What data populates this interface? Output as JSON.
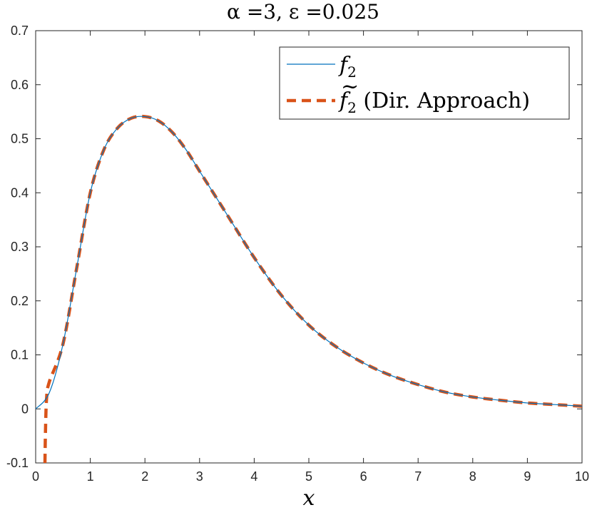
{
  "chart_data": {
    "type": "line",
    "title": "α =3, ε =0.025",
    "xlabel": "x",
    "ylabel": "",
    "xlim": [
      0,
      10
    ],
    "ylim": [
      -0.1,
      0.7
    ],
    "xticks": [
      0,
      1,
      2,
      3,
      4,
      5,
      6,
      7,
      8,
      9,
      10
    ],
    "yticks": [
      -0.1,
      0,
      0.1,
      0.2,
      0.3,
      0.4,
      0.5,
      0.6,
      0.7
    ],
    "xtick_labels": [
      "0",
      "1",
      "2",
      "3",
      "4",
      "5",
      "6",
      "7",
      "8",
      "9",
      "10"
    ],
    "ytick_labels": [
      "-0.1",
      "0",
      "0.1",
      "0.2",
      "0.3",
      "0.4",
      "0.5",
      "0.6",
      "0.7"
    ],
    "grid": false,
    "legend_position": "top-right",
    "series": [
      {
        "name": "f₂",
        "style": "solid",
        "color": "#0072BD",
        "x": [
          0,
          0.25,
          0.5,
          0.75,
          1.0,
          1.25,
          1.5,
          1.75,
          2.0,
          2.25,
          2.5,
          2.75,
          3.0,
          3.5,
          4.0,
          4.5,
          5.0,
          5.5,
          6.0,
          6.5,
          7.0,
          7.5,
          8.0,
          8.5,
          9.0,
          9.5,
          10.0
        ],
        "y": [
          0.0,
          0.03,
          0.12,
          0.26,
          0.4,
          0.48,
          0.52,
          0.538,
          0.541,
          0.533,
          0.512,
          0.48,
          0.44,
          0.36,
          0.28,
          0.21,
          0.155,
          0.115,
          0.085,
          0.062,
          0.045,
          0.031,
          0.022,
          0.016,
          0.011,
          0.008,
          0.005
        ]
      },
      {
        "name": "f̃₂ (Dir. Approach)",
        "style": "dashed",
        "color": "#D95319",
        "x": [
          0.17,
          0.18,
          0.2,
          0.25,
          0.5,
          0.75,
          1.0,
          1.25,
          1.5,
          1.75,
          2.0,
          2.25,
          2.5,
          2.75,
          3.0,
          3.5,
          4.0,
          4.5,
          5.0,
          5.5,
          6.0,
          6.5,
          7.0,
          7.5,
          8.0,
          8.5,
          9.0,
          9.5,
          10.0
        ],
        "y": [
          -0.1,
          -0.04,
          0.02,
          0.05,
          0.12,
          0.26,
          0.4,
          0.48,
          0.52,
          0.538,
          0.541,
          0.533,
          0.512,
          0.48,
          0.44,
          0.36,
          0.28,
          0.21,
          0.155,
          0.115,
          0.085,
          0.062,
          0.045,
          0.031,
          0.022,
          0.016,
          0.011,
          0.008,
          0.005
        ]
      }
    ],
    "legend": {
      "f2_main": "f",
      "f2_sub": "2",
      "f2t_main": "f",
      "f2t_sub": "2",
      "f2t_suffix": " (Dir. Approach)"
    }
  }
}
